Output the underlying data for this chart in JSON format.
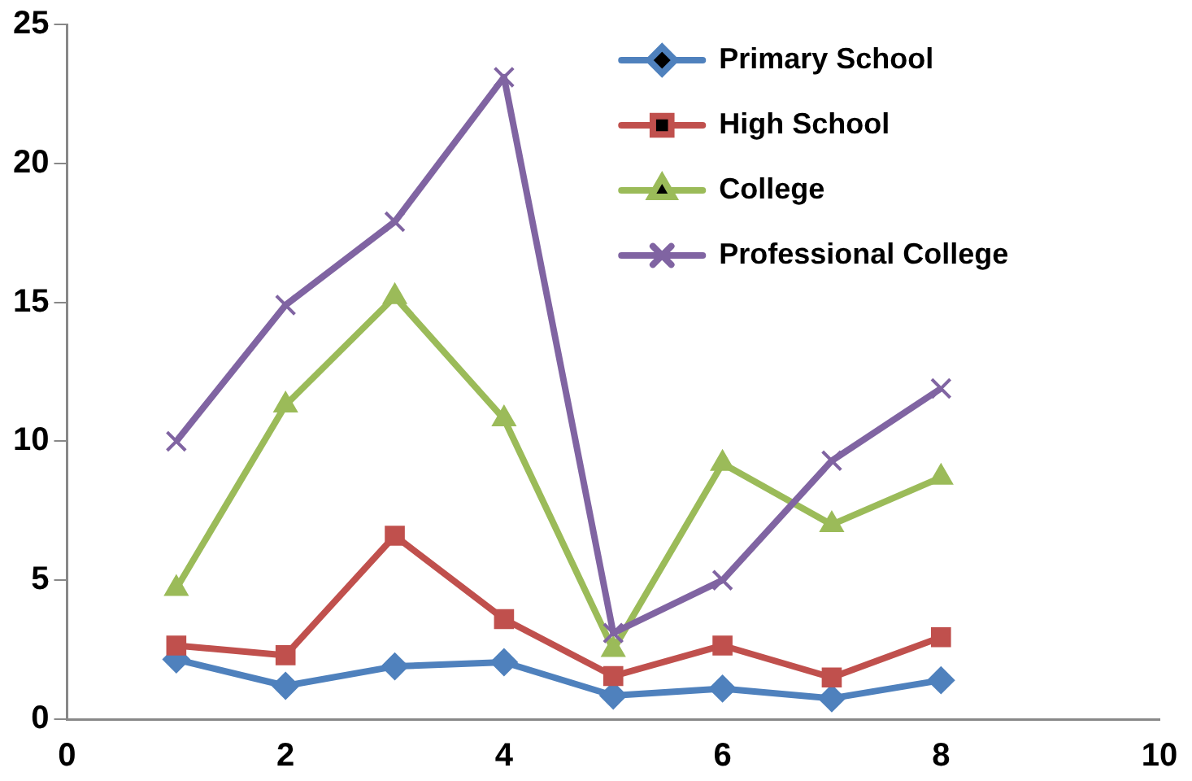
{
  "chart_data": {
    "type": "line",
    "x": [
      1,
      2,
      3,
      4,
      5,
      6,
      7,
      8
    ],
    "series": [
      {
        "name": "Primary School",
        "color": "#4f81bd",
        "marker": "diamond",
        "values": [
          2.15,
          1.2,
          1.9,
          2.05,
          0.85,
          1.1,
          0.75,
          1.4
        ]
      },
      {
        "name": "High School",
        "color": "#c0504d",
        "marker": "square",
        "values": [
          2.65,
          2.3,
          6.6,
          3.6,
          1.55,
          2.65,
          1.5,
          2.95
        ]
      },
      {
        "name": "College",
        "color": "#9bbb59",
        "marker": "triangle",
        "values": [
          4.7,
          11.3,
          15.2,
          10.8,
          2.5,
          9.2,
          7.0,
          8.7
        ]
      },
      {
        "name": "Professional College",
        "color": "#8064a2",
        "marker": "cross",
        "values": [
          10.0,
          14.9,
          17.9,
          23.1,
          3.1,
          5.0,
          9.3,
          11.9
        ]
      }
    ],
    "xlim": [
      0,
      10
    ],
    "xticks": [
      0,
      2,
      4,
      6,
      8,
      10
    ],
    "ylim": [
      0,
      25
    ],
    "yticks": [
      0,
      5,
      10,
      15,
      20,
      25
    ],
    "grid": false,
    "legend": "top right"
  }
}
